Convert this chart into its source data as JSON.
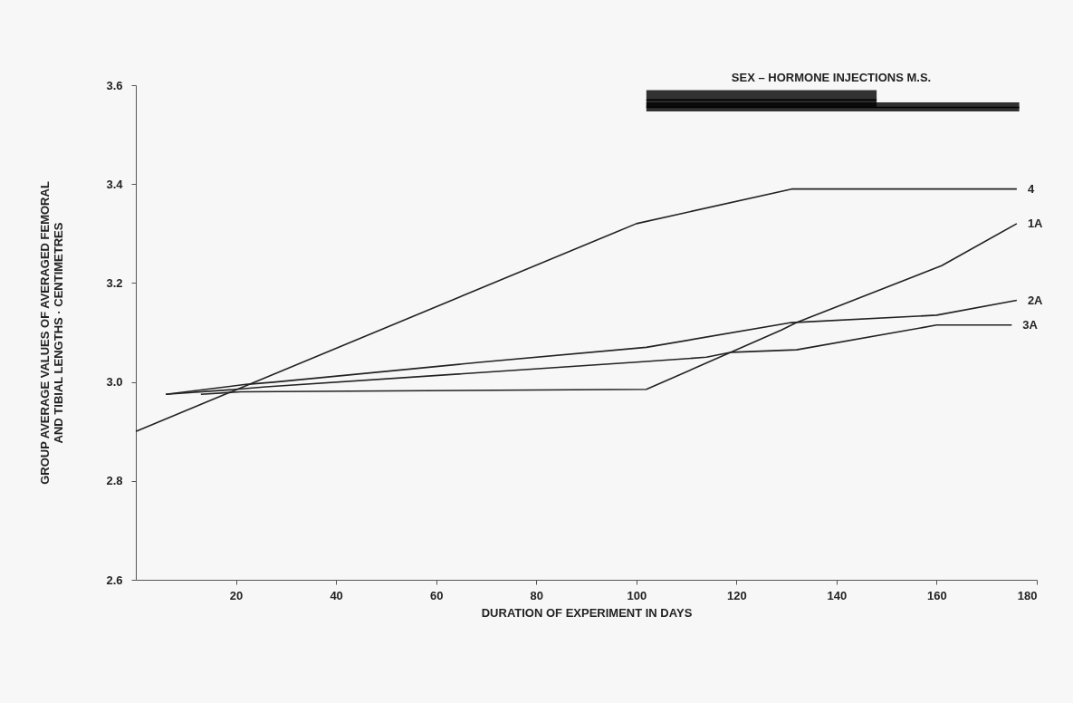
{
  "chart_data": {
    "type": "line",
    "xlabel": "DURATION  OF EXPERIMENT IN DAYS",
    "ylabel": "GROUP AVERAGE VALUES OF AVERAGED FEMORAL\nAND TIBIAL LENGTHS · CENTIMETRES",
    "xlim": [
      0,
      180
    ],
    "xticks": [
      20,
      40,
      60,
      80,
      100,
      120,
      140,
      160,
      180
    ],
    "ylim": [
      2.6,
      3.6
    ],
    "yticks": [
      2.6,
      2.8,
      {
        "value": 3,
        "label": "3.0"
      },
      3.2,
      3.4,
      3.6
    ],
    "grid": false,
    "marker": "none",
    "line_style": "solid",
    "series": [
      {
        "name": "4",
        "color": "#222222",
        "x": [
          0,
          100,
          131,
          176
        ],
        "values": [
          2.9,
          3.32,
          3.39,
          3.39
        ]
      },
      {
        "name": "1A",
        "color": "#222222",
        "x": [
          13,
          21,
          102,
          129,
          132,
          161,
          176
        ],
        "values": [
          2.975,
          2.98,
          2.985,
          3.105,
          3.12,
          3.235,
          3.32
        ]
      },
      {
        "name": "2A",
        "color": "#222222",
        "x": [
          6,
          22,
          28,
          69,
          102,
          131,
          160,
          176
        ],
        "values": [
          2.975,
          2.995,
          3.0,
          3.04,
          3.07,
          3.12,
          3.135,
          3.165
        ]
      },
      {
        "name": "3A",
        "color": "#222222",
        "x": [
          6,
          20,
          26,
          100,
          114,
          119,
          132,
          160,
          175
        ],
        "values": [
          2.975,
          2.985,
          2.99,
          3.04,
          3.05,
          3.06,
          3.065,
          3.115,
          3.115
        ]
      },
      {
        "color": "#000000",
        "x": [
          102,
          148
        ],
        "values": [
          3.57,
          3.57
        ],
        "lower": [
          3.555,
          3.555
        ],
        "upper": [
          3.59,
          3.59
        ]
      },
      {
        "color": "#000000",
        "x": [
          102,
          176.5
        ],
        "values": [
          3.555,
          3.555
        ],
        "lower": [
          3.547,
          3.547
        ],
        "upper": [
          3.565,
          3.565
        ]
      }
    ],
    "annotations": [
      "SEX – HORMONE INJECTIONS  M.S."
    ]
  }
}
